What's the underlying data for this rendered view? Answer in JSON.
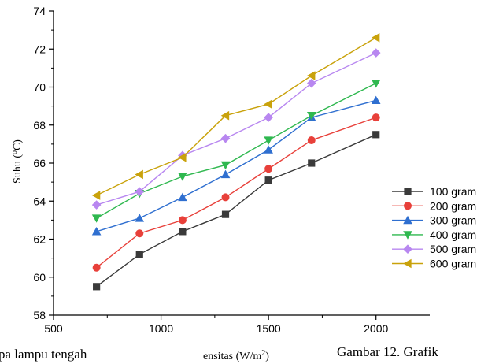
{
  "chart_data": {
    "type": "line",
    "xlabel_prefix": "ensitas (W/m",
    "xlabel_sup": "2",
    "xlabel_suffix": ")",
    "ylabel_prefix": "Suhu (",
    "ylabel_sup": "o",
    "ylabel_suffix": "C)",
    "xlim": [
      500,
      2250
    ],
    "ylim": [
      58,
      74
    ],
    "xticks": [
      500,
      1000,
      1500,
      2000
    ],
    "yticks": [
      58,
      60,
      62,
      64,
      66,
      68,
      70,
      72,
      74
    ],
    "legend_position": "right",
    "grid": false,
    "x": [
      700,
      900,
      1100,
      1300,
      1500,
      1700,
      2000
    ],
    "series": [
      {
        "name": "100 gram",
        "color": "#3a3a3a",
        "marker": "square",
        "values": [
          59.5,
          61.2,
          62.4,
          63.3,
          65.1,
          66.0,
          67.5
        ]
      },
      {
        "name": "200 gram",
        "color": "#e8403a",
        "marker": "circle",
        "values": [
          60.5,
          62.3,
          63.0,
          64.2,
          65.7,
          67.2,
          68.4
        ]
      },
      {
        "name": "300 gram",
        "color": "#2f6fd0",
        "marker": "triangle-up",
        "values": [
          62.4,
          63.1,
          64.2,
          65.4,
          66.7,
          68.4,
          69.3
        ]
      },
      {
        "name": "400 gram",
        "color": "#2fb84f",
        "marker": "triangle-down",
        "values": [
          63.1,
          64.4,
          65.3,
          65.9,
          67.2,
          68.5,
          70.2
        ]
      },
      {
        "name": "500 gram",
        "color": "#b887f0",
        "marker": "diamond",
        "values": [
          63.8,
          64.5,
          66.4,
          67.3,
          68.4,
          70.2,
          71.8
        ]
      },
      {
        "name": "600 gram",
        "color": "#c9a20b",
        "marker": "triangle-left",
        "values": [
          64.3,
          65.4,
          66.3,
          68.5,
          69.1,
          70.6,
          72.6
        ]
      }
    ]
  },
  "captions": {
    "left": "pa lampu tengah",
    "right": "Gambar 12. Grafik"
  }
}
